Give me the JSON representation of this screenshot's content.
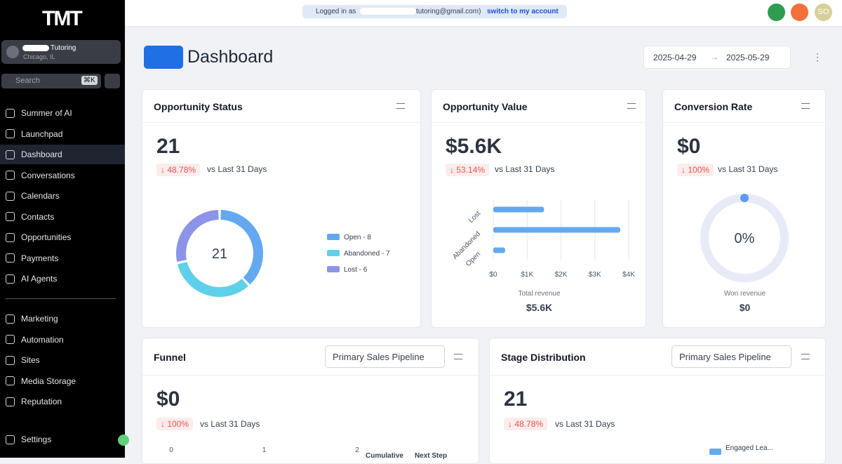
{
  "header": {
    "logged_in": "Logged in as",
    "email": "tutoring@gmail.com)",
    "switch": "switch to my account",
    "avatar": "SO"
  },
  "sidebar": {
    "logo": "TMT",
    "account": {
      "name": "Tutoring",
      "location": "Chicago, IL"
    },
    "search": "Search",
    "shortcut": "⌘K",
    "nav": [
      "Summer of AI",
      "Launchpad",
      "Dashboard",
      "Conversations",
      "Calendars",
      "Contacts",
      "Opportunities",
      "Payments",
      "AI Agents"
    ],
    "nav2": [
      "Marketing",
      "Automation",
      "Sites",
      "Media Storage",
      "Reputation"
    ],
    "settings": "Settings"
  },
  "page": {
    "title": "Dashboard",
    "date_from": "2025-04-29",
    "date_to": "2025-05-29"
  },
  "cards": {
    "status": {
      "title": "Opportunity Status",
      "value": "21",
      "delta": "48.78%",
      "compare": "vs Last 31 Days",
      "chart": {
        "type": "donut",
        "categories": [
          "Open - 8",
          "Abandoned - 7",
          "Lost - 6"
        ],
        "values": [
          8,
          7,
          6
        ],
        "colors": [
          "#64a8f0",
          "#5fd0ea",
          "#8c94ea"
        ]
      }
    },
    "value": {
      "title": "Opportunity Value",
      "value": "$5.6K",
      "delta": "53.14%",
      "compare": "vs Last 31 Days",
      "chart": {
        "type": "bar",
        "orientation": "horizontal",
        "categories": [
          "Lost",
          "Abandoned",
          "Open"
        ],
        "values": [
          1500,
          3750,
          350
        ],
        "color": "#64a8f0",
        "xlim": [
          0,
          4000
        ],
        "xticks": [
          {
            "value": 0,
            "label": "$0"
          },
          {
            "value": 1000,
            "label": "$1K"
          },
          {
            "value": 2000,
            "label": "$2K"
          },
          {
            "value": 3000,
            "label": "$3K"
          },
          {
            "value": 4000,
            "label": "$4K"
          }
        ],
        "grid": true
      },
      "total_label": "Total revenue",
      "total": "$5.6K"
    },
    "conversion": {
      "title": "Conversion Rate",
      "value": "$0",
      "delta": "100%",
      "compare": "vs Last 31 Days",
      "chart": {
        "type": "gauge",
        "value": 0,
        "value_label": "0%",
        "max": 100,
        "color": "#5b9cf0",
        "track_color": "#e8ebf7"
      },
      "total_label": "Won revenue",
      "total": "$0"
    },
    "funnel": {
      "title": "Funnel",
      "pipeline": "Primary Sales Pipeline",
      "value": "$0",
      "delta": "100%",
      "compare": "vs Last 31 Days",
      "chart": {
        "type": "bar",
        "xlim": [
          0,
          2
        ],
        "xticks": [
          0,
          1,
          2
        ],
        "columns": [
          "Cumulative",
          "Next Step"
        ]
      }
    },
    "stage": {
      "title": "Stage Distribution",
      "pipeline": "Primary Sales Pipeline",
      "value": "21",
      "delta": "48.78%",
      "compare": "vs Last 31 Days",
      "legend": [
        "Engaged Lea..."
      ]
    }
  }
}
